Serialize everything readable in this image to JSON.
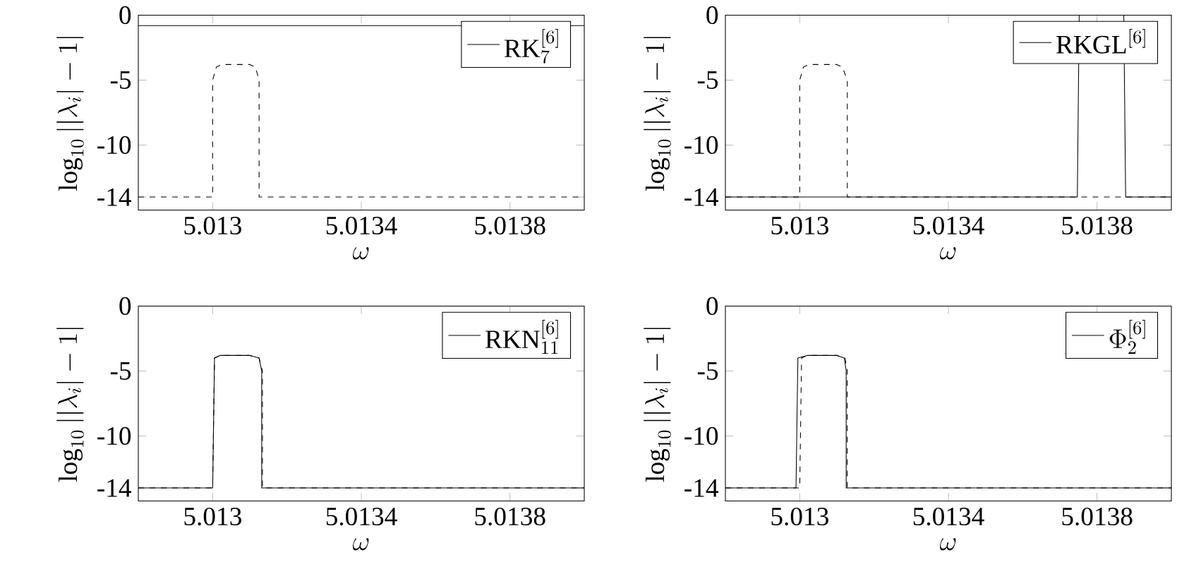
{
  "chart_data": [
    {
      "type": "line",
      "xlabel": "\\omega",
      "ylabel": "\\log_{10}||\\lambda_i|-1|",
      "xlim": [
        5.0128,
        5.014
      ],
      "ylim": [
        -15,
        0
      ],
      "xticks": [
        5.013,
        5.0134,
        5.0138
      ],
      "yticks": [
        0,
        -5,
        -10,
        -14
      ],
      "legend": "top right",
      "series": [
        {
          "name": "\\mathrm{RK}_7^{[6]}",
          "color": "#000000",
          "line_style": "solid",
          "x": [
            5.0128,
            5.014
          ],
          "values": [
            -0.8,
            -0.8
          ]
        },
        {
          "color": "#000000",
          "line_style": "dashed",
          "x": [
            5.0128,
            5.013,
            5.013,
            5.01301,
            5.013025,
            5.0131,
            5.013115,
            5.013125,
            5.013125,
            5.014
          ],
          "values": [
            -14,
            -14,
            -5,
            -4,
            -3.8,
            -3.8,
            -4,
            -5,
            -14,
            -14
          ]
        }
      ]
    },
    {
      "type": "line",
      "xlabel": "\\omega",
      "ylabel": "\\log_{10}||\\lambda_i|-1|",
      "xlim": [
        5.0128,
        5.014
      ],
      "ylim": [
        -15,
        0
      ],
      "xticks": [
        5.013,
        5.0134,
        5.0138
      ],
      "yticks": [
        0,
        -5,
        -10,
        -14
      ],
      "legend": "top right",
      "series": [
        {
          "name": "\\mathrm{RKGL}^{[6]}",
          "color": "#000000",
          "line_style": "solid",
          "x": [
            5.0128,
            5.013747,
            5.013752,
            5.013872,
            5.013877,
            5.014
          ],
          "values": [
            -14,
            -14,
            0,
            0,
            -14,
            -14
          ]
        },
        {
          "color": "#000000",
          "line_style": "dashed",
          "x": [
            5.0128,
            5.013,
            5.013,
            5.01301,
            5.013025,
            5.0131,
            5.013115,
            5.013128,
            5.013128,
            5.014
          ],
          "values": [
            -14,
            -14,
            -5,
            -4,
            -3.8,
            -3.8,
            -4,
            -5,
            -14,
            -14
          ]
        }
      ]
    },
    {
      "type": "line",
      "xlabel": "\\omega",
      "ylabel": "\\log_{10}||\\lambda_i|-1|",
      "xlim": [
        5.0128,
        5.014
      ],
      "ylim": [
        -15,
        0
      ],
      "xticks": [
        5.013,
        5.0134,
        5.0138
      ],
      "yticks": [
        0,
        -5,
        -10,
        -14
      ],
      "legend": "top right",
      "series": [
        {
          "name": "\\mathrm{RKN}_{11}^{[6]}",
          "color": "#000000",
          "line_style": "solid",
          "x": [
            5.0128,
            5.013,
            5.013005,
            5.01302,
            5.0131,
            5.013125,
            5.013132,
            5.013132,
            5.014
          ],
          "values": [
            -14,
            -14,
            -4,
            -3.8,
            -3.8,
            -4,
            -5,
            -14,
            -14
          ]
        },
        {
          "color": "#000000",
          "line_style": "dashed",
          "x": [
            5.0128,
            5.013,
            5.013005,
            5.01302,
            5.0131,
            5.013125,
            5.013134,
            5.013134,
            5.014
          ],
          "values": [
            -14,
            -14,
            -4,
            -3.8,
            -3.8,
            -4,
            -5,
            -14,
            -14
          ]
        }
      ]
    },
    {
      "type": "line",
      "xlabel": "\\omega",
      "ylabel": "\\log_{10}||\\lambda_i|-1|",
      "xlim": [
        5.0128,
        5.014
      ],
      "ylim": [
        -15,
        0
      ],
      "xticks": [
        5.013,
        5.0134,
        5.0138
      ],
      "yticks": [
        0,
        -5,
        -10,
        -14
      ],
      "legend": "top right",
      "series": [
        {
          "name": "\\Phi_2^{[6]}",
          "color": "#000000",
          "line_style": "solid",
          "x": [
            5.0128,
            5.01299,
            5.012995,
            5.01302,
            5.0131,
            5.01312,
            5.013125,
            5.013125,
            5.014
          ],
          "values": [
            -14,
            -14,
            -4,
            -3.8,
            -3.8,
            -4,
            -5,
            -14,
            -14
          ]
        },
        {
          "color": "#000000",
          "line_style": "dashed",
          "x": [
            5.0128,
            5.013,
            5.013005,
            5.01302,
            5.0131,
            5.013122,
            5.013128,
            5.013128,
            5.014
          ],
          "values": [
            -14,
            -14,
            -4,
            -3.8,
            -3.8,
            -4,
            -5,
            -14,
            -14
          ]
        }
      ]
    }
  ]
}
